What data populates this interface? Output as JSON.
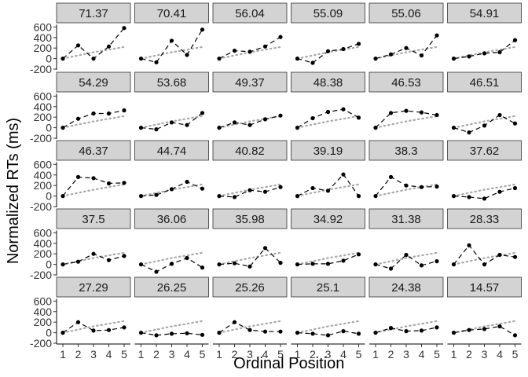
{
  "chart_data": {
    "type": "line",
    "xlabel": "Ordinal Position",
    "ylabel": "Normalized RTs (ms)",
    "x": [
      1,
      2,
      3,
      4,
      5
    ],
    "xticks": [
      "1",
      "2",
      "3",
      "4",
      "5"
    ],
    "yticks": [
      600,
      400,
      200,
      0,
      -200
    ],
    "ylim": [
      -200,
      650
    ],
    "grid": false,
    "panel_layout": {
      "rows": 5,
      "cols": 6
    },
    "reference_series": [
      0,
      60,
      120,
      170,
      220
    ],
    "panels": [
      {
        "label": "71.37",
        "values": [
          0,
          250,
          0,
          230,
          580
        ]
      },
      {
        "label": "70.41",
        "values": [
          0,
          -70,
          340,
          70,
          550
        ]
      },
      {
        "label": "56.04",
        "values": [
          0,
          150,
          130,
          230,
          410
        ]
      },
      {
        "label": "55.09",
        "values": [
          0,
          -80,
          140,
          180,
          280
        ]
      },
      {
        "label": "55.06",
        "values": [
          0,
          80,
          200,
          60,
          440
        ]
      },
      {
        "label": "54.91",
        "values": [
          0,
          40,
          100,
          120,
          350
        ]
      },
      {
        "label": "54.29",
        "values": [
          0,
          170,
          270,
          270,
          330
        ]
      },
      {
        "label": "53.68",
        "values": [
          0,
          -30,
          100,
          50,
          280
        ]
      },
      {
        "label": "49.37",
        "values": [
          0,
          100,
          50,
          160,
          230
        ]
      },
      {
        "label": "48.38",
        "values": [
          0,
          180,
          300,
          350,
          190
        ]
      },
      {
        "label": "46.53",
        "values": [
          0,
          280,
          320,
          290,
          240
        ]
      },
      {
        "label": "46.51",
        "values": [
          0,
          -90,
          40,
          240,
          80
        ]
      },
      {
        "label": "46.37",
        "values": [
          0,
          360,
          340,
          240,
          250
        ]
      },
      {
        "label": "44.74",
        "values": [
          0,
          20,
          130,
          270,
          140
        ]
      },
      {
        "label": "40.82",
        "values": [
          0,
          -20,
          110,
          80,
          170
        ]
      },
      {
        "label": "39.19",
        "values": [
          0,
          150,
          100,
          410,
          0
        ]
      },
      {
        "label": "38.3",
        "values": [
          0,
          360,
          200,
          170,
          180
        ]
      },
      {
        "label": "37.62",
        "values": [
          0,
          -20,
          -50,
          80,
          150
        ]
      },
      {
        "label": "37.5",
        "values": [
          0,
          50,
          200,
          80,
          160
        ]
      },
      {
        "label": "36.06",
        "values": [
          0,
          -140,
          10,
          120,
          -60
        ]
      },
      {
        "label": "35.98",
        "values": [
          0,
          20,
          -40,
          310,
          30
        ]
      },
      {
        "label": "34.92",
        "values": [
          0,
          10,
          10,
          70,
          190
        ]
      },
      {
        "label": "31.38",
        "values": [
          0,
          -80,
          180,
          -20,
          60
        ]
      },
      {
        "label": "28.33",
        "values": [
          0,
          360,
          0,
          180,
          140
        ]
      },
      {
        "label": "27.29",
        "values": [
          0,
          200,
          40,
          50,
          100
        ]
      },
      {
        "label": "26.25",
        "values": [
          0,
          -50,
          -20,
          -10,
          -40
        ]
      },
      {
        "label": "25.26",
        "values": [
          0,
          200,
          50,
          20,
          20
        ]
      },
      {
        "label": "25.1",
        "values": [
          0,
          -20,
          -50,
          30,
          -20
        ]
      },
      {
        "label": "24.38",
        "values": [
          0,
          90,
          30,
          40,
          100
        ]
      },
      {
        "label": "14.57",
        "values": [
          0,
          50,
          70,
          120,
          -50
        ]
      }
    ]
  }
}
